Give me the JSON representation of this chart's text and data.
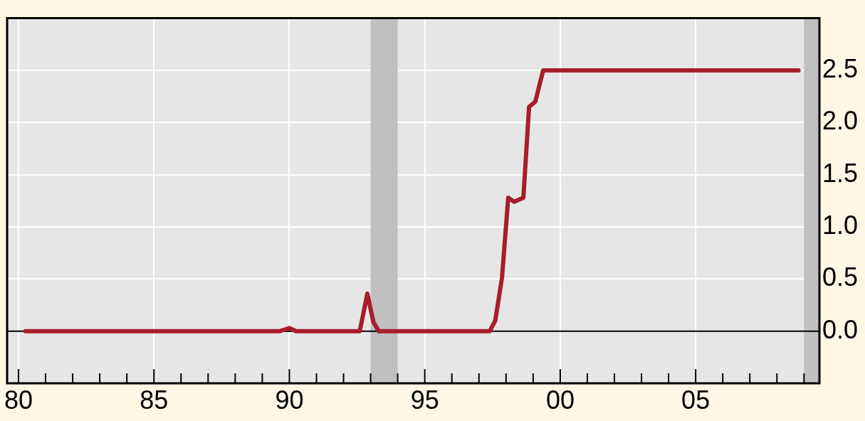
{
  "chart_data": {
    "type": "line",
    "x": [
      1980.25,
      1989.65,
      1990.0,
      1990.25,
      1992.6,
      1992.88,
      1993.1,
      1993.3,
      1997.4,
      1997.6,
      1997.85,
      1998.08,
      1998.3,
      1998.64,
      1998.85,
      1999.08,
      1999.37,
      2008.8
    ],
    "series": [
      {
        "color": "#a81c2d",
        "values": [
          0,
          0,
          0.03,
          0,
          0,
          0.36,
          0.09,
          0,
          0,
          0.1,
          0.51,
          1.28,
          1.24,
          1.28,
          2.15,
          2.2,
          2.5,
          2.5
        ]
      }
    ],
    "xlim": [
      1979.58,
      2009.57
    ],
    "xticks": [
      {
        "value": 1980,
        "label": "80"
      },
      {
        "value": 1981,
        "label": null
      },
      {
        "value": 1982,
        "label": null
      },
      {
        "value": 1983,
        "label": null
      },
      {
        "value": 1984,
        "label": null
      },
      {
        "value": 1985,
        "label": "85"
      },
      {
        "value": 1986,
        "label": null
      },
      {
        "value": 1987,
        "label": null
      },
      {
        "value": 1988,
        "label": null
      },
      {
        "value": 1989,
        "label": null
      },
      {
        "value": 1990,
        "label": "90"
      },
      {
        "value": 1991,
        "label": null
      },
      {
        "value": 1992,
        "label": null
      },
      {
        "value": 1993,
        "label": null
      },
      {
        "value": 1994,
        "label": null
      },
      {
        "value": 1995,
        "label": "95"
      },
      {
        "value": 1996,
        "label": null
      },
      {
        "value": 1997,
        "label": null
      },
      {
        "value": 1998,
        "label": null
      },
      {
        "value": 1999,
        "label": null
      },
      {
        "value": 2000,
        "label": "00"
      },
      {
        "value": 2001,
        "label": null
      },
      {
        "value": 2002,
        "label": null
      },
      {
        "value": 2003,
        "label": null
      },
      {
        "value": 2004,
        "label": null
      },
      {
        "value": 2005,
        "label": "05"
      },
      {
        "value": 2006,
        "label": null
      },
      {
        "value": 2007,
        "label": null
      },
      {
        "value": 2008,
        "label": null
      },
      {
        "value": 2009,
        "label": null
      }
    ],
    "ylim": [
      -0.5,
      3.0
    ],
    "yticks": [
      {
        "value": 0,
        "label": "0.0"
      },
      {
        "value": 0.5,
        "label": "0.5"
      },
      {
        "value": 1,
        "label": "1.0"
      },
      {
        "value": 1.5,
        "label": "1.5"
      },
      {
        "value": 2,
        "label": "2.0"
      },
      {
        "value": 2.5,
        "label": "2.5"
      }
    ],
    "bands": [
      {
        "axis": "x",
        "from": 1993,
        "to": 1994,
        "color": "#c0c0c0"
      },
      {
        "axis": "x",
        "from": 2009,
        "to": 2009.57,
        "color": "#c0c0c0"
      }
    ],
    "ref_lines": [
      {
        "axis": "y",
        "value": 0,
        "color": "#000000"
      }
    ],
    "grid": true,
    "legend": false,
    "marker": "none",
    "line_style": "solid"
  }
}
